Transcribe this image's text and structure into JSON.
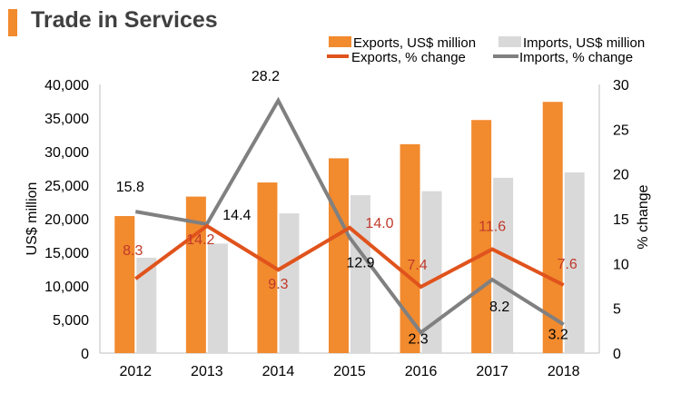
{
  "header": {
    "title": "Trade in Services"
  },
  "colors": {
    "accent": "#f28a2e",
    "exports_bar": "#f28a2e",
    "imports_bar": "#d9d9d9",
    "exports_line": "#e0531c",
    "imports_line": "#808080",
    "exports_label": "#c0392b",
    "text": "#000000"
  },
  "chart_data": {
    "type": "bar",
    "title": "Trade in Services",
    "categories": [
      "2012",
      "2013",
      "2014",
      "2015",
      "2016",
      "2017",
      "2018"
    ],
    "ylabel": "US$ million",
    "y2label": "% change",
    "ylim": [
      0,
      40000
    ],
    "y2lim": [
      0,
      30
    ],
    "y_ticks": [
      "0",
      "5,000",
      "10,000",
      "15,000",
      "20,000",
      "25,000",
      "30,000",
      "35,000",
      "40,000"
    ],
    "y2_ticks": [
      "0",
      "5",
      "10",
      "15",
      "20",
      "25",
      "30"
    ],
    "series": [
      {
        "name": "Exports, US$ million",
        "kind": "bar",
        "axis": "left",
        "values": [
          20400,
          23300,
          25400,
          29000,
          31100,
          34700,
          37400
        ]
      },
      {
        "name": "Imports, US$ million",
        "kind": "bar",
        "axis": "left",
        "values": [
          14200,
          16300,
          20800,
          23500,
          24100,
          26100,
          26900
        ]
      },
      {
        "name": "Exports, % change",
        "kind": "line",
        "axis": "right",
        "values": [
          8.3,
          14.2,
          9.3,
          14.0,
          7.4,
          11.6,
          7.6
        ],
        "labels": [
          "8.3",
          "14.2",
          "9.3",
          "14.0",
          "7.4",
          "11.6",
          "7.6"
        ]
      },
      {
        "name": "Imports, % change",
        "kind": "line",
        "axis": "right",
        "values": [
          15.8,
          14.4,
          28.2,
          12.9,
          2.3,
          8.2,
          3.2
        ],
        "labels": [
          "15.8",
          "14.4",
          "28.2",
          "12.9",
          "2.3",
          "8.2",
          "3.2"
        ]
      }
    ],
    "legend": "top-right"
  }
}
